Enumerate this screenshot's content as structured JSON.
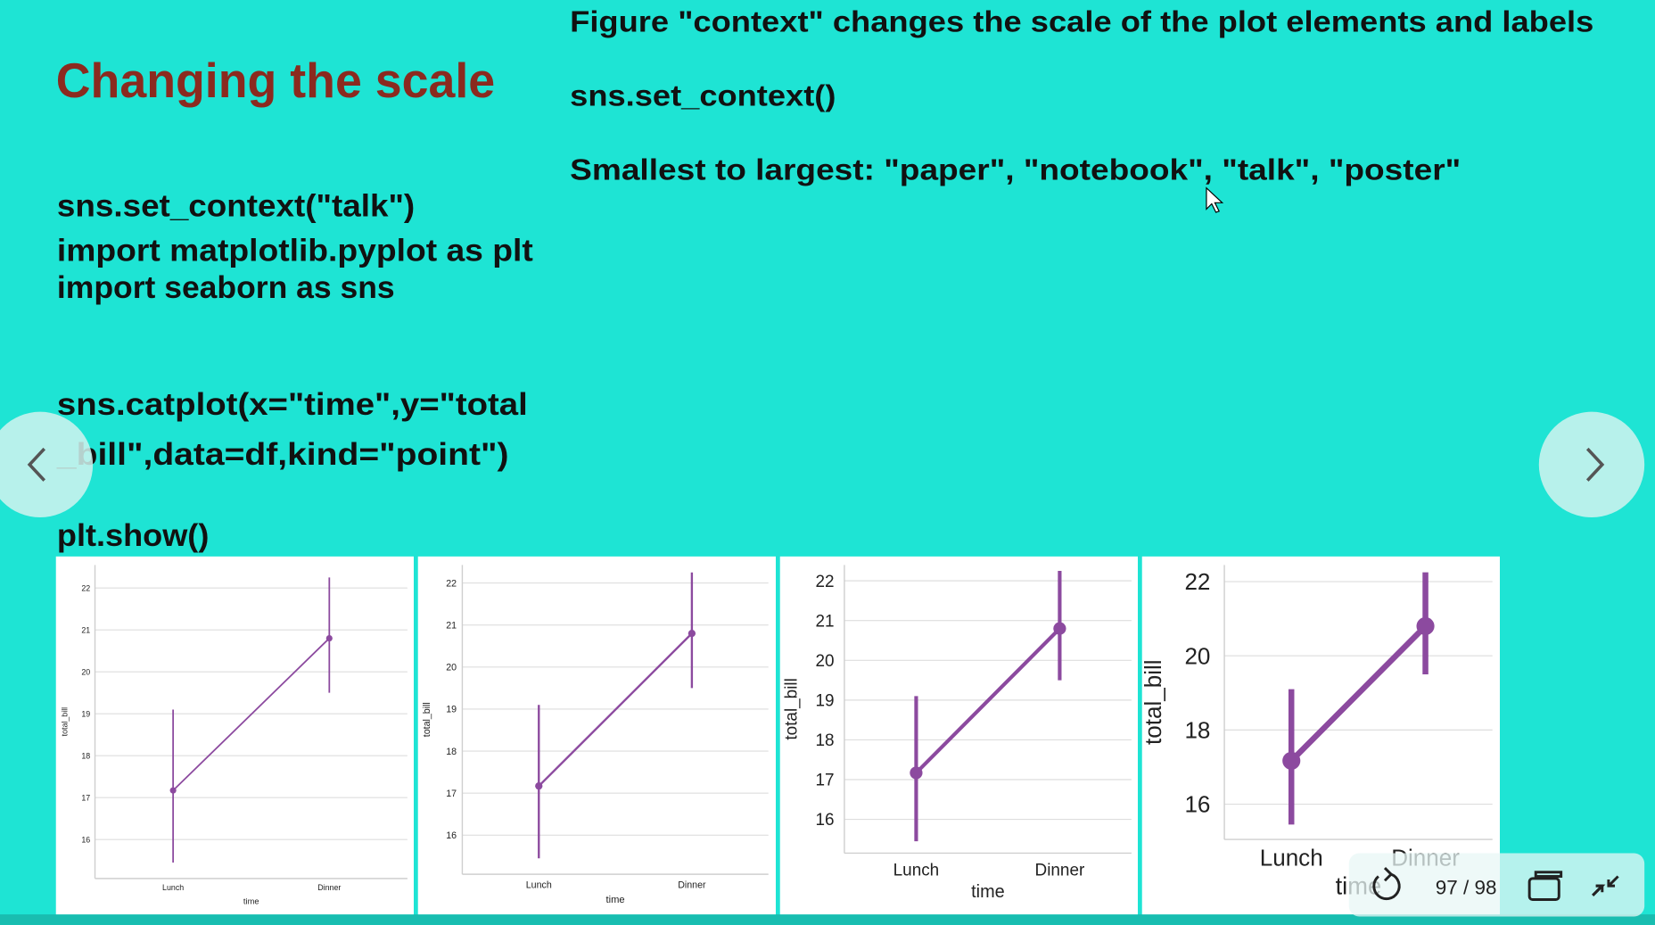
{
  "slide": {
    "title": "Changing the scale",
    "notes": [
      "Figure \"context\" changes the scale of the plot elements and labels",
      "sns.set_context()",
      "Smallest to largest: \"paper\", \"notebook\", \"talk\", \"poster\""
    ],
    "code": [
      "sns.set_context(\"talk\")",
      "import matplotlib.pyplot as plt",
      "import seaborn as sns",
      "sns.catplot(x=\"time\",y=\"total",
      "_bill\",data=df,kind=\"point\")",
      "plt.show()"
    ]
  },
  "player": {
    "page": "97 / 98"
  },
  "chart_data": [
    {
      "type": "point",
      "x_label": "time",
      "y_label": "total_bill",
      "categories": [
        "Lunch",
        "Dinner"
      ],
      "values": [
        17.17,
        20.8
      ],
      "ci_lower": [
        15.45,
        19.5
      ],
      "ci_upper": [
        19.1,
        22.25
      ],
      "color": "#8c4a9f",
      "ylim": [
        15.07,
        22.55
      ],
      "yticks": [
        16,
        17,
        18,
        19,
        20,
        21,
        22
      ],
      "grid": true
    },
    {
      "type": "point",
      "x_label": "time",
      "y_label": "total_bill",
      "categories": [
        "Lunch",
        "Dinner"
      ],
      "values": [
        17.17,
        20.8
      ],
      "ci_lower": [
        15.45,
        19.5
      ],
      "ci_upper": [
        19.1,
        22.25
      ],
      "color": "#8c4a9f",
      "ylim": [
        15.07,
        22.43
      ],
      "yticks": [
        16,
        17,
        18,
        19,
        20,
        21,
        22
      ],
      "grid": true
    },
    {
      "type": "point",
      "x_label": "time",
      "y_label": "total_bill",
      "categories": [
        "Lunch",
        "Dinner"
      ],
      "values": [
        17.17,
        20.8
      ],
      "ci_lower": [
        15.45,
        19.5
      ],
      "ci_upper": [
        19.1,
        22.25
      ],
      "color": "#8c4a9f",
      "ylim": [
        15.15,
        22.4
      ],
      "yticks": [
        16,
        17,
        18,
        19,
        20,
        21,
        22
      ],
      "grid": true
    },
    {
      "type": "point",
      "x_label": "time",
      "y_label": "total_bill",
      "categories": [
        "Lunch",
        "Dinner"
      ],
      "values": [
        17.17,
        20.8
      ],
      "ci_lower": [
        15.45,
        19.5
      ],
      "ci_upper": [
        19.1,
        22.25
      ],
      "color": "#8c4a9f",
      "ylim": [
        15.05,
        22.45
      ],
      "yticks": [
        16,
        18,
        20,
        22
      ],
      "grid": true
    }
  ]
}
